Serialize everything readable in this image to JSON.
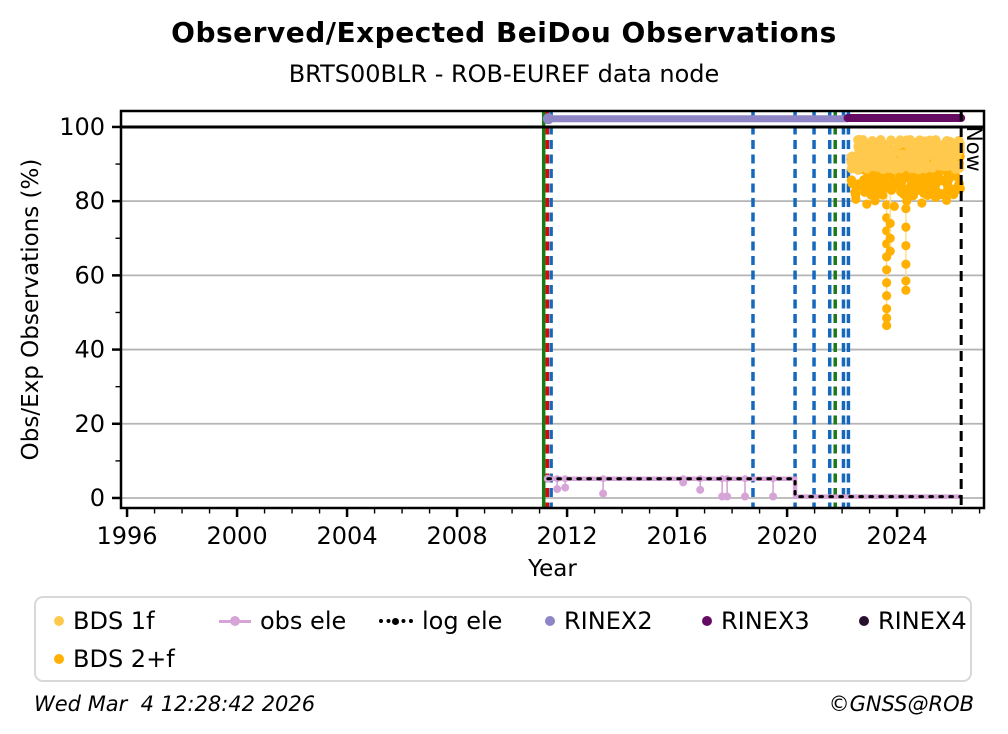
{
  "chart_data": {
    "type": "scatter",
    "title": "Observed/Expected BeiDou Observations",
    "subtitle": "BRTS00BLR - ROB-EUREF data node",
    "xlabel": "Year",
    "ylabel": "Obs/Exp Observations (%)",
    "xlim": [
      1995.78,
      2027.16
    ],
    "ylim": [
      -2.7,
      104.3
    ],
    "xticks": [
      1996,
      2000,
      2004,
      2008,
      2012,
      2016,
      2020,
      2024
    ],
    "yticks": [
      0,
      20,
      40,
      60,
      80,
      100
    ],
    "grid": "horizontal-gray",
    "reference_line": {
      "y": 100,
      "color": "#000000"
    },
    "now_line": {
      "year": 2026.33,
      "label": "Now",
      "color": "#000000",
      "style": "dashed"
    },
    "event_lines": [
      {
        "year": 2011.15,
        "color": "#1a7a1a",
        "style": "solid"
      },
      {
        "year": 2011.28,
        "color": "#dd0806",
        "style": "dashed"
      },
      {
        "year": 2011.42,
        "color": "#1668bd",
        "style": "dashed"
      },
      {
        "year": 2018.76,
        "color": "#1668bd",
        "style": "dashed"
      },
      {
        "year": 2020.29,
        "color": "#1668bd",
        "style": "dashed"
      },
      {
        "year": 2020.98,
        "color": "#1668bd",
        "style": "dashed"
      },
      {
        "year": 2021.55,
        "color": "#1668bd",
        "style": "dashed"
      },
      {
        "year": 2021.75,
        "color": "#1a7a1a",
        "style": "dashed"
      },
      {
        "year": 2022.05,
        "color": "#1668bd",
        "style": "dashed"
      },
      {
        "year": 2022.23,
        "color": "#1668bd",
        "style": "dashed"
      }
    ],
    "series": {
      "rinex2": {
        "name": "RINEX2",
        "color": "#8d85c6",
        "y": 102.2,
        "x_start": 2011.32,
        "x_end": 2022.2
      },
      "rinex3": {
        "name": "RINEX3",
        "color": "#650b64",
        "y": 102.4,
        "x_start": 2022.2,
        "x_end": 2026.33
      },
      "rinex4": {
        "name": "RINEX4",
        "color": "#27102e",
        "points": []
      },
      "obs_ele": {
        "name": "obs ele",
        "color": "#d7a4d7",
        "path": [
          [
            2011.3,
            5.2
          ],
          [
            2020.29,
            5.2
          ],
          [
            2020.29,
            0.35
          ],
          [
            2026.33,
            0.35
          ]
        ],
        "droppers": [
          [
            2011.64,
            2.4
          ],
          [
            2011.93,
            2.8
          ],
          [
            2013.31,
            1.2
          ],
          [
            2016.22,
            4.2
          ],
          [
            2016.84,
            2.2
          ],
          [
            2017.64,
            0.4
          ],
          [
            2017.82,
            0.4
          ],
          [
            2018.47,
            0.4
          ],
          [
            2019.49,
            0.4
          ]
        ]
      },
      "log_ele": {
        "name": "log ele",
        "color": "#000000",
        "follows": "obs_ele"
      },
      "bds_1f": {
        "name": "BDS 1f",
        "color": "#ffc94d",
        "x_start": 2022.33,
        "x_end": 2026.3,
        "band": [
          88.5,
          96.6
        ],
        "n": 250,
        "seed": 7
      },
      "bds_2f": {
        "name": "BDS 2+f",
        "color": "#ffb000",
        "x_start": 2022.33,
        "x_end": 2026.3,
        "band": [
          81.5,
          93.5
        ],
        "n": 260,
        "seed": 13,
        "outliers": [
          [
            2022.5,
            80.5
          ],
          [
            2022.9,
            79.2
          ],
          [
            2023.2,
            80.1
          ],
          [
            2023.9,
            78.6
          ],
          [
            2024.35,
            80.0
          ],
          [
            2024.9,
            79.5
          ],
          [
            2025.4,
            81.0
          ],
          [
            2025.8,
            80.2
          ],
          [
            2026.05,
            82.0
          ]
        ],
        "chains": [
          {
            "x": 2023.62,
            "ys": [
              79,
              75.5,
              72,
              68.5,
              65,
              61.5,
              58,
              54.5,
              51,
              48.5,
              46.5
            ]
          },
          {
            "x": 2024.32,
            "ys": [
              78,
              73,
              68,
              63,
              58.5,
              56
            ]
          },
          {
            "x": 2023.75,
            "ys": [
              74,
              70,
              66.5
            ]
          }
        ]
      }
    }
  },
  "legend": {
    "items": [
      {
        "label": "BDS 1f",
        "color": "#ffc94d",
        "marker": "dot"
      },
      {
        "label": "obs ele",
        "color": "#d7a4d7",
        "marker": "line-dot"
      },
      {
        "label": "log ele",
        "color": "#000000",
        "marker": "dotted-line"
      },
      {
        "label": "RINEX2",
        "color": "#8d85c6",
        "marker": "dot"
      },
      {
        "label": "RINEX3",
        "color": "#650b64",
        "marker": "dot"
      },
      {
        "label": "RINEX4",
        "color": "#27102e",
        "marker": "dot"
      },
      {
        "label": "BDS 2+f",
        "color": "#ffb000",
        "marker": "dot"
      }
    ]
  },
  "footer": {
    "timestamp": "Wed Mar  4 12:28:42 2026",
    "credit": "©GNSS@ROB"
  }
}
